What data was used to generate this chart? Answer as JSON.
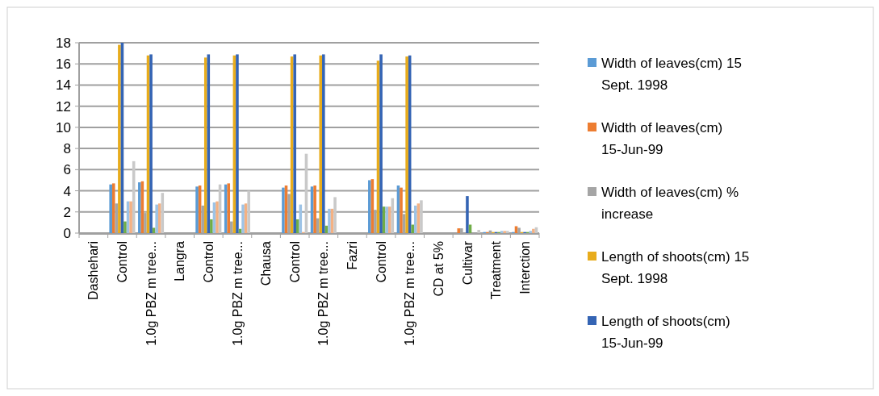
{
  "chart_data": {
    "type": "bar",
    "categories": [
      "Dashehari",
      "Control",
      "1.0g PBZ m tree...",
      "Langra",
      "Control",
      "1.0g PBZ m tree...",
      "Chausa",
      "Control",
      "1.0g PBZ m tree...",
      "Fazri",
      "Control",
      "1.0g PBZ m tree...",
      "CD at 5%",
      "Cultivar",
      "Treatment",
      "Interction"
    ],
    "series": [
      {
        "name": "Width of leaves(cm) 15 Sept. 1998",
        "color": "#5b9bd5",
        "values": [
          null,
          4.6,
          4.8,
          null,
          4.4,
          4.6,
          null,
          4.3,
          4.4,
          null,
          5.0,
          4.5,
          null,
          null,
          0.1,
          0.1
        ]
      },
      {
        "name": "Width of leaves(cm) 15-Jun-99",
        "color": "#ed7d31",
        "values": [
          null,
          4.7,
          4.9,
          null,
          4.5,
          4.7,
          null,
          4.5,
          4.5,
          null,
          5.1,
          4.3,
          null,
          0.45,
          0.1,
          0.65
        ]
      },
      {
        "name": "Width of leaves(cm) % increase",
        "color": "#a5a5a5",
        "values": [
          null,
          2.8,
          1.9,
          null,
          2.6,
          1.1,
          null,
          3.7,
          1.4,
          null,
          2.2,
          1.8,
          null,
          0.45,
          0.25,
          0.5
        ]
      },
      {
        "name": "Length of shoots(cm) 15 Sept. 1998",
        "color": "#e8ac1c",
        "values": [
          null,
          17.8,
          16.8,
          null,
          16.6,
          16.8,
          null,
          16.7,
          16.8,
          null,
          16.3,
          16.7,
          null,
          null,
          0.1,
          0.1
        ]
      },
      {
        "name": "Length of shoots(cm) 15-Jun-99",
        "color": "#3464b4",
        "values": [
          null,
          18.0,
          16.9,
          null,
          16.9,
          16.9,
          null,
          16.9,
          16.9,
          null,
          16.9,
          16.8,
          null,
          3.5,
          0.1,
          0.1
        ]
      },
      {
        "color": "#70ad47",
        "values": [
          null,
          1.1,
          0.5,
          null,
          1.3,
          0.4,
          null,
          1.3,
          0.7,
          null,
          2.5,
          0.8,
          null,
          0.8,
          0.1,
          0.1
        ]
      },
      {
        "color": "#9dc3e6",
        "values": [
          null,
          3.0,
          2.7,
          null,
          2.9,
          2.7,
          null,
          2.7,
          2.3,
          null,
          2.5,
          2.6,
          null,
          null,
          0.2,
          0.2
        ]
      },
      {
        "color": "#f4b183",
        "values": [
          null,
          3.0,
          2.8,
          null,
          3.0,
          2.8,
          null,
          0.1,
          2.3,
          null,
          2.5,
          2.8,
          null,
          null,
          0.2,
          0.4
        ]
      },
      {
        "color": "#c9c9c9",
        "values": [
          null,
          6.8,
          3.8,
          null,
          4.6,
          4.0,
          null,
          7.5,
          3.4,
          null,
          3.3,
          3.1,
          null,
          0.3,
          0.2,
          0.55
        ]
      }
    ],
    "ylim": [
      0,
      18
    ],
    "yticks": [
      0,
      2,
      4,
      6,
      8,
      10,
      12,
      14,
      16,
      18
    ],
    "grid": "y",
    "legend": "right"
  }
}
